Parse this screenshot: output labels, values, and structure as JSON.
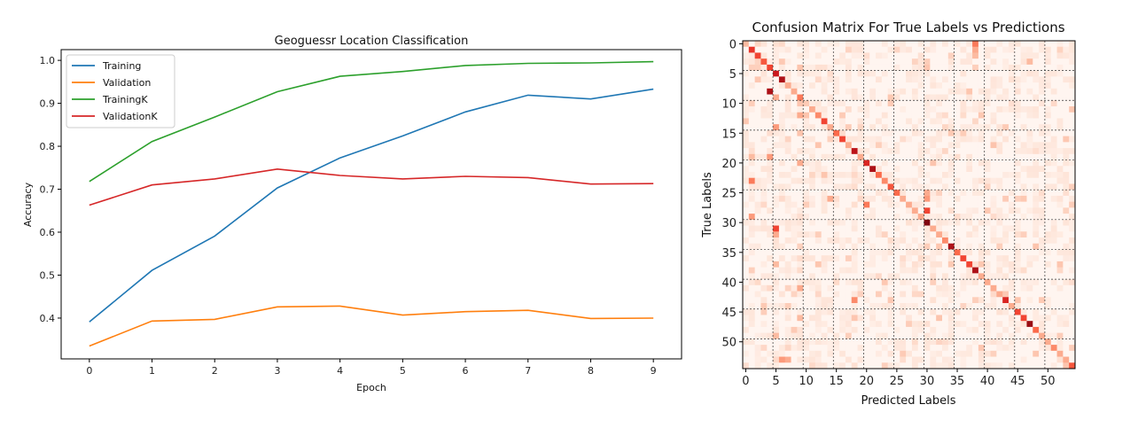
{
  "chart_data": [
    {
      "type": "line",
      "title": "Geoguessr Location Classification",
      "xlabel": "Epoch",
      "ylabel": "Accuracy",
      "x": [
        0,
        1,
        2,
        3,
        4,
        5,
        6,
        7,
        8,
        9
      ],
      "xlim": [
        -0.45,
        9.45
      ],
      "ylim": [
        0.305,
        1.025
      ],
      "xticks": [
        "0",
        "1",
        "2",
        "3",
        "4",
        "5",
        "6",
        "7",
        "8",
        "9"
      ],
      "yticks": [
        "0.4",
        "0.5",
        "0.6",
        "0.7",
        "0.8",
        "0.9",
        "1.0"
      ],
      "legend_position": "top-left",
      "grid": false,
      "series": [
        {
          "name": "Training",
          "color": "#1f77b4",
          "values": [
            0.391,
            0.511,
            0.591,
            0.703,
            0.773,
            0.824,
            0.88,
            0.919,
            0.91,
            0.933
          ]
        },
        {
          "name": "Validation",
          "color": "#ff7f0e",
          "values": [
            0.335,
            0.393,
            0.397,
            0.426,
            0.428,
            0.407,
            0.415,
            0.418,
            0.399,
            0.4
          ]
        },
        {
          "name": "TrainingK",
          "color": "#2ca02c",
          "values": [
            0.718,
            0.811,
            0.868,
            0.927,
            0.963,
            0.974,
            0.988,
            0.993,
            0.994,
            0.997
          ]
        },
        {
          "name": "ValidationK",
          "color": "#d62728",
          "values": [
            0.663,
            0.71,
            0.724,
            0.747,
            0.732,
            0.724,
            0.73,
            0.727,
            0.712,
            0.713
          ]
        }
      ]
    },
    {
      "type": "heatmap",
      "title": "Confusion Matrix For True Labels vs Predictions",
      "xlabel": "Predicted Labels",
      "ylabel": "True Labels",
      "size": 55,
      "colormap": "Reds",
      "xticks": [
        "0",
        "5",
        "10",
        "15",
        "20",
        "25",
        "30",
        "35",
        "40",
        "45",
        "50"
      ],
      "yticks": [
        "0",
        "5",
        "10",
        "15",
        "20",
        "25",
        "30",
        "35",
        "40",
        "45",
        "50"
      ],
      "gridlines_every": 5,
      "diagonal": [
        0.25,
        0.65,
        0.6,
        0.55,
        0.6,
        0.75,
        0.85,
        0.3,
        0.3,
        0.5,
        0.2,
        0.3,
        0.4,
        0.6,
        0.3,
        0.5,
        0.6,
        0.3,
        0.8,
        0.3,
        0.7,
        0.85,
        0.5,
        0.4,
        0.55,
        0.5,
        0.3,
        0.3,
        0.3,
        0.3,
        0.95,
        0.3,
        0.3,
        0.4,
        0.85,
        0.5,
        0.6,
        0.6,
        0.85,
        0.3,
        0.3,
        0.3,
        0.3,
        0.7,
        0.3,
        0.6,
        0.6,
        0.9,
        0.5,
        0.3,
        0.3,
        0.4,
        0.3,
        0.3,
        0.55
      ],
      "off_diagonal": [
        [
          0,
          38,
          0.45
        ],
        [
          1,
          38,
          0.3
        ],
        [
          2,
          38,
          0.25
        ],
        [
          8,
          4,
          0.85
        ],
        [
          9,
          9,
          0.45
        ],
        [
          9,
          5,
          0.3
        ],
        [
          14,
          5,
          0.35
        ],
        [
          12,
          9,
          0.3
        ],
        [
          23,
          1,
          0.45
        ],
        [
          29,
          1,
          0.35
        ],
        [
          19,
          1,
          0.25
        ],
        [
          19,
          4,
          0.35
        ],
        [
          20,
          9,
          0.3
        ],
        [
          27,
          20,
          0.45
        ],
        [
          26,
          14,
          0.3
        ],
        [
          31,
          5,
          0.6
        ],
        [
          32,
          5,
          0.3
        ],
        [
          28,
          30,
          0.6
        ],
        [
          26,
          30,
          0.35
        ],
        [
          25,
          30,
          0.3
        ],
        [
          43,
          18,
          0.4
        ],
        [
          41,
          9,
          0.3
        ],
        [
          53,
          6,
          0.35
        ],
        [
          53,
          7,
          0.3
        ],
        [
          49,
          5,
          0.25
        ],
        [
          48,
          8,
          0.2
        ],
        [
          3,
          47,
          0.25
        ],
        [
          46,
          9,
          0.25
        ],
        [
          37,
          5,
          0.25
        ]
      ]
    }
  ]
}
